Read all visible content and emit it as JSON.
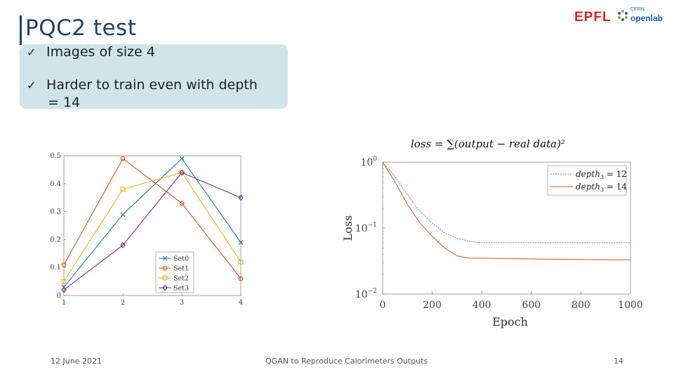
{
  "slide": {
    "title": "PQC2 test",
    "bullets": [
      {
        "check": "✓",
        "text": "Images of size 4"
      },
      {
        "check": "✓",
        "text_line1": "Harder to train even with  depth",
        "text_line2": "=  14"
      }
    ],
    "logo": {
      "epfl": "EPFL",
      "cern": "CERN",
      "openlab": "openlab"
    },
    "footer": {
      "date": "12 June 2021",
      "center": "QGAN to Reproduce Calorimeters Outputs",
      "page": "14"
    }
  },
  "chart_data": [
    {
      "type": "line",
      "x": [
        1,
        2,
        3,
        4
      ],
      "series": [
        {
          "name": "Set0",
          "values": [
            0.03,
            0.29,
            0.49,
            0.19
          ],
          "color": "#1f77b4",
          "marker": "x"
        },
        {
          "name": "Set1",
          "values": [
            0.11,
            0.49,
            0.33,
            0.06
          ],
          "color": "#d9531e",
          "marker": "o"
        },
        {
          "name": "Set2",
          "values": [
            0.05,
            0.38,
            0.44,
            0.12
          ],
          "color": "#edb120",
          "marker": "s"
        },
        {
          "name": "Set3",
          "values": [
            0.02,
            0.18,
            0.44,
            0.35
          ],
          "color": "#7e2f8e",
          "marker": "d"
        }
      ],
      "xticks": [
        "1",
        "2",
        "3",
        "4"
      ],
      "yticks": [
        "0",
        "0.1",
        "0.2",
        "0.3",
        "0.4",
        "0.5"
      ],
      "ylim": [
        0,
        0.5
      ],
      "legend": "bottom-right"
    },
    {
      "type": "line",
      "title": "loss = ∑(output  − real data)²",
      "xlabel": "Epoch",
      "ylabel": "Loss",
      "xlim": [
        0,
        1000
      ],
      "ylim_log10": [
        -2,
        0
      ],
      "xticks": [
        "0",
        "200",
        "400",
        "600",
        "800",
        "1000"
      ],
      "yticks": [
        {
          "base": "10",
          "exp": "0",
          "value": 0
        },
        {
          "base": "10",
          "exp": "−1",
          "value": -1
        },
        {
          "base": "10",
          "exp": "−2",
          "value": -2
        }
      ],
      "legend": "top-right",
      "series": [
        {
          "name": "depth",
          "sub": "3",
          "eq": " = 12",
          "color": "#3a8fc8",
          "dash": "2,1.5",
          "points": [
            [
              0,
              1.0
            ],
            [
              50,
              0.6
            ],
            [
              100,
              0.32
            ],
            [
              150,
              0.18
            ],
            [
              200,
              0.12
            ],
            [
              250,
              0.085
            ],
            [
              300,
              0.07
            ],
            [
              350,
              0.063
            ],
            [
              400,
              0.06
            ],
            [
              600,
              0.06
            ],
            [
              1000,
              0.06
            ]
          ]
        },
        {
          "name": "depth",
          "sub": "3",
          "eq": " = 14",
          "color": "#d9531e",
          "dash": "",
          "points": [
            [
              0,
              1.0
            ],
            [
              50,
              0.5
            ],
            [
              100,
              0.23
            ],
            [
              150,
              0.12
            ],
            [
              200,
              0.075
            ],
            [
              250,
              0.05
            ],
            [
              300,
              0.038
            ],
            [
              350,
              0.035
            ],
            [
              400,
              0.035
            ],
            [
              600,
              0.034
            ],
            [
              1000,
              0.033
            ]
          ]
        }
      ]
    }
  ]
}
